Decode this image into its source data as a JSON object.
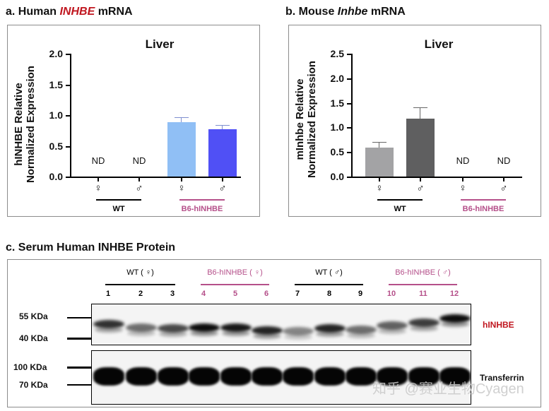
{
  "panels": {
    "a": {
      "prefix": "a. Human ",
      "gene": "INHBE",
      "suffix": " mRNA"
    },
    "b": {
      "prefix": "b. Mouse ",
      "gene": "Inhbe",
      "suffix": " mRNA"
    },
    "c": {
      "title": "c. Serum Human INHBE Protein"
    }
  },
  "chart_data": [
    {
      "type": "bar",
      "title": "Liver",
      "panel_title": "a. Human INHBE mRNA",
      "ylabel": "hINHBE Relative Normalized Expression",
      "ylabel_line1": "hINHBE Relative",
      "ylabel_line2": "Normalized Expression",
      "xlabel": "",
      "ylim": [
        0,
        2.0
      ],
      "yticks": [
        "2.0",
        "1.5",
        "1.0",
        "0.5",
        "0.0"
      ],
      "categories": [
        "WT ♀",
        "WT ♂",
        "B6-hINHBE ♀",
        "B6-hINHBE ♂"
      ],
      "sex_labels": [
        "♀",
        "♂",
        "♀",
        "♂"
      ],
      "groups": [
        {
          "name": "WT",
          "color": "#000000"
        },
        {
          "name": "B6-hINHBE",
          "color": "#b5508a"
        }
      ],
      "values": [
        null,
        null,
        0.88,
        0.77
      ],
      "errors": [
        null,
        null,
        0.09,
        0.07
      ],
      "bar_colors": [
        "#ffffff",
        "#ffffff",
        "#90bff5",
        "#5050f5"
      ],
      "annotations": [
        "ND",
        "ND",
        "",
        ""
      ],
      "grid": false
    },
    {
      "type": "bar",
      "title": "Liver",
      "panel_title": "b. Mouse Inhbe mRNA",
      "ylabel": "mInhbe Relative Normalized Expression",
      "ylabel_line1": "mInhbe  Relative",
      "ylabel_line2": "Normalized Expression",
      "xlabel": "",
      "ylim": [
        0,
        2.5
      ],
      "yticks": [
        "2.5",
        "2.0",
        "1.5",
        "1.0",
        "0.5",
        "0.0"
      ],
      "categories": [
        "WT ♀",
        "WT ♂",
        "B6-hINHBE ♀",
        "B6-hINHBE ♂"
      ],
      "sex_labels": [
        "♀",
        "♂",
        "♀",
        "♂"
      ],
      "groups": [
        {
          "name": "WT",
          "color": "#000000"
        },
        {
          "name": "B6-hINHBE",
          "color": "#b5508a"
        }
      ],
      "values": [
        0.59,
        1.18,
        null,
        null
      ],
      "errors": [
        0.11,
        0.23,
        null,
        null
      ],
      "bar_colors": [
        "#a3a3a5",
        "#5f5f60",
        "#ffffff",
        "#ffffff"
      ],
      "annotations": [
        "",
        "",
        "ND",
        "ND"
      ],
      "grid": false
    },
    {
      "type": "table",
      "title": "c. Serum Human INHBE Protein",
      "description": "Western blot",
      "groups": [
        {
          "label": "WT ( ♀)",
          "lanes": [
            "1",
            "2",
            "3"
          ],
          "color": "#000000"
        },
        {
          "label": "B6-hINHBE ( ♀)",
          "lanes": [
            "4",
            "5",
            "6"
          ],
          "color": "#b5508a"
        },
        {
          "label": "WT ( ♂)",
          "lanes": [
            "7",
            "8",
            "9"
          ],
          "color": "#000000"
        },
        {
          "label": "B6-hINHBE ( ♂)",
          "lanes": [
            "10",
            "11",
            "12"
          ],
          "color": "#b5508a"
        }
      ],
      "blots": [
        {
          "target": "hINHBE",
          "target_color": "#c0161f",
          "markers": [
            "55 KDa",
            "40 KDa"
          ]
        },
        {
          "target": "Transferrin",
          "target_color": "#000000",
          "markers": [
            "100 KDa",
            "70 KDa"
          ]
        }
      ]
    }
  ],
  "watermark": "知乎 @赛业生物Cyagen"
}
